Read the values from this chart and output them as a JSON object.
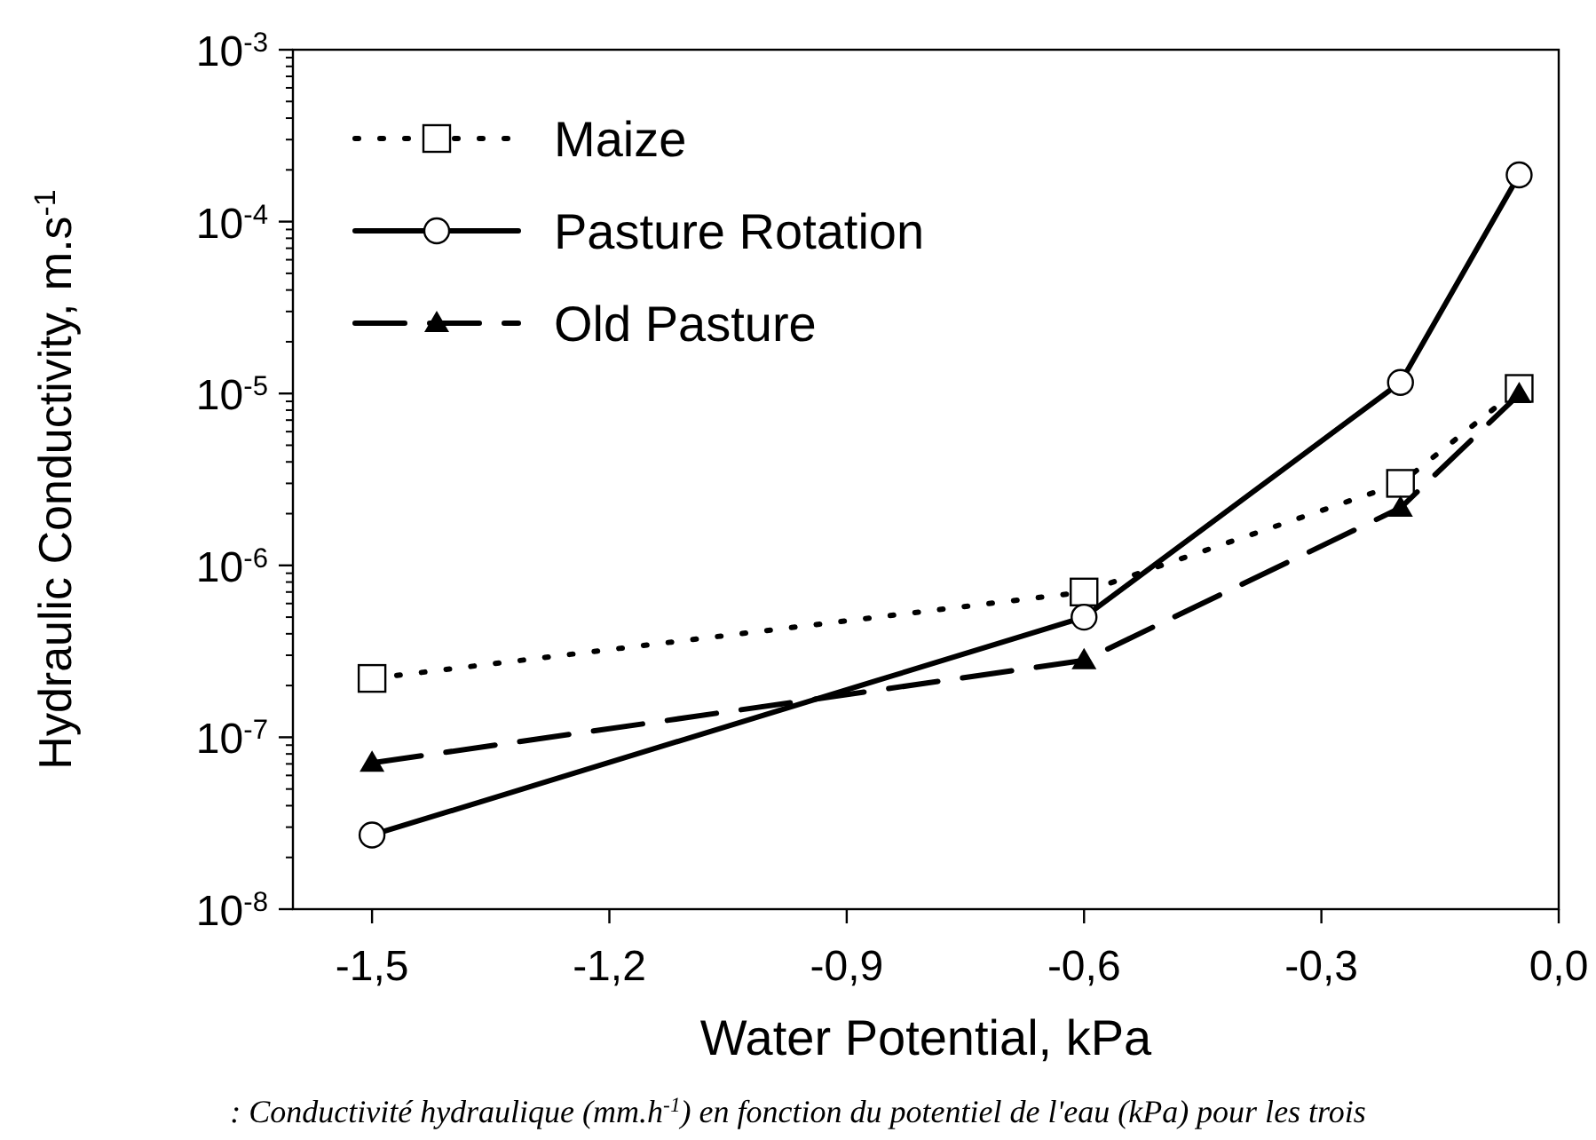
{
  "chart_data": {
    "type": "line",
    "xlabel": "Water Potential, kPa",
    "ylabel": "Hydraulic Conductivity, m.s$^{-1}$",
    "annotations": [
      ": Conductivité hydraulique (mm.h$^{-1}$) en fonction du potentiel de l'eau (kPa) pour les trois"
    ],
    "x": [
      -1.5,
      -0.6,
      -0.2,
      -0.05
    ],
    "series": [
      {
        "name": "Maize",
        "color": "#000000",
        "values": [
          2.2e-07,
          7e-07,
          3e-06,
          1.07e-05
        ],
        "marker": "square",
        "line_style": "dotted"
      },
      {
        "name": "Pasture Rotation",
        "color": "#000000",
        "values": [
          2.7e-08,
          5e-07,
          1.16e-05,
          0.000187
        ],
        "marker": "circle",
        "line_style": "solid"
      },
      {
        "name": "Old Pasture",
        "color": "#000000",
        "values": [
          7.1e-08,
          2.8e-07,
          2.16e-06,
          9.9e-06
        ],
        "marker": "triangle",
        "line_style": "dashed"
      }
    ],
    "log": "y",
    "xlim": [
      -1.6,
      0
    ],
    "ylim": [
      1e-08,
      0.001
    ],
    "xticks": [
      {
        "value": -1.5,
        "label": "-1,5"
      },
      {
        "value": -1.2,
        "label": "-1,2"
      },
      {
        "value": -0.9,
        "label": "-0,9"
      },
      {
        "value": -0.6,
        "label": "-0,6"
      },
      {
        "value": -0.3,
        "label": "-0,3"
      },
      {
        "value": 0,
        "label": "0,0"
      }
    ],
    "yticks": [
      {
        "value": 1e-08,
        "label": "10$^{-8}$"
      },
      {
        "value": 1e-07,
        "label": "10$^{-7}$"
      },
      {
        "value": 1e-06,
        "label": "10$^{-6}$"
      },
      {
        "value": 1e-05,
        "label": "10$^{-5}$"
      },
      {
        "value": 0.0001,
        "label": "10$^{-4}$"
      },
      {
        "value": 0.001,
        "label": "10$^{-3}$"
      }
    ],
    "legend": "top left",
    "grid": false
  }
}
